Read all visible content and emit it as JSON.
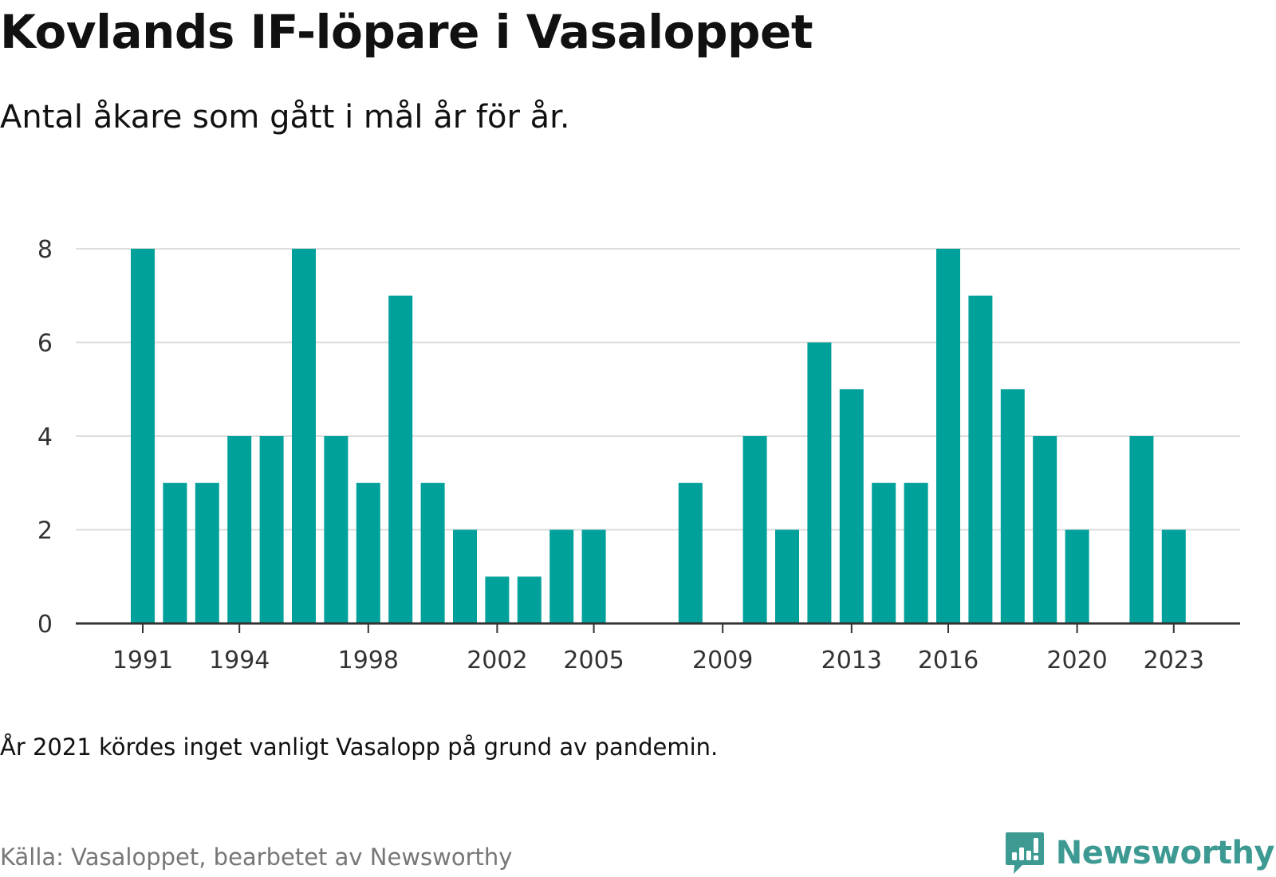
{
  "title": "Kovlands IF-löpare i Vasaloppet",
  "subtitle": "Antal åkare som gått i mål år för år.",
  "note": "År 2021 kördes inget vanligt Vasalopp på grund av pandemin.",
  "source": "Källa: Vasaloppet, bearbetet av Newsworthy",
  "brand": {
    "name": "Newsworthy",
    "icon": "newsworthy-logo-icon",
    "color": "#3d9a93"
  },
  "colors": {
    "bar": "#00a19a",
    "grid": "#dddddd",
    "axis": "#333333"
  },
  "chart_data": {
    "type": "bar",
    "title": "Kovlands IF-löpare i Vasaloppet",
    "subtitle": "Antal åkare som gått i mål år för år.",
    "xlabel": "",
    "ylabel": "",
    "x": [
      1991,
      1992,
      1993,
      1994,
      1995,
      1996,
      1997,
      1998,
      1999,
      2000,
      2001,
      2002,
      2003,
      2004,
      2005,
      2006,
      2007,
      2008,
      2009,
      2010,
      2011,
      2012,
      2013,
      2014,
      2015,
      2016,
      2017,
      2018,
      2019,
      2020,
      2021,
      2022,
      2023
    ],
    "values": [
      8,
      3,
      3,
      4,
      4,
      8,
      4,
      3,
      7,
      3,
      2,
      1,
      1,
      2,
      2,
      0,
      0,
      3,
      0,
      4,
      2,
      6,
      5,
      3,
      3,
      8,
      7,
      5,
      4,
      2,
      0,
      4,
      2
    ],
    "x_ticks": [
      "1991",
      "1994",
      "1998",
      "2002",
      "2005",
      "2009",
      "2013",
      "2016",
      "2020",
      "2023"
    ],
    "y_ticks": [
      "0",
      "2",
      "4",
      "6",
      "8"
    ],
    "ylim": [
      0,
      8
    ],
    "grid": true,
    "legend": "none"
  }
}
